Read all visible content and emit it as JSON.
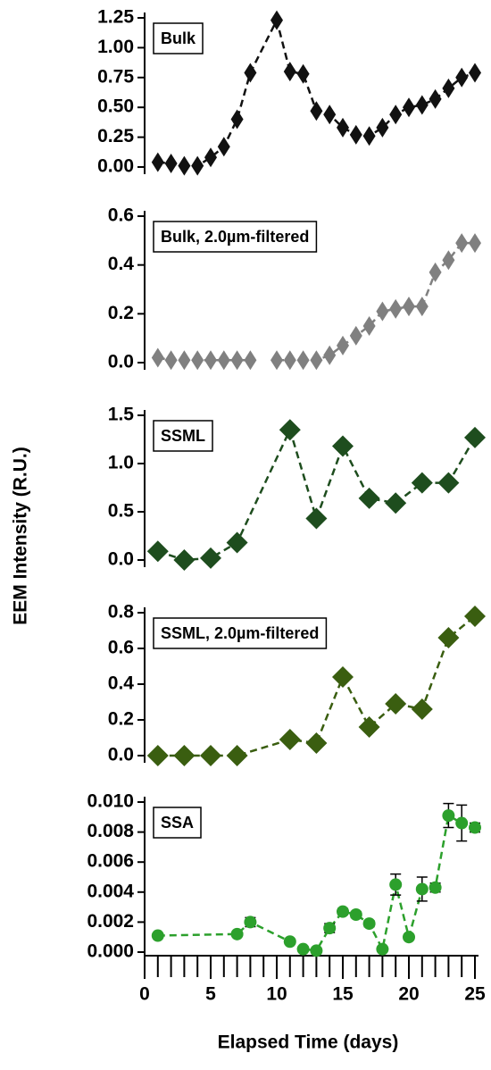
{
  "ylabel": "EEM Intensity (R.U.)",
  "xlabel": "Elapsed Time (days)",
  "chart_data": [
    {
      "type": "line",
      "marker": "diamond",
      "annotation": "Bulk",
      "color": "#111111",
      "x": [
        1,
        2,
        3,
        4,
        5,
        6,
        7,
        8,
        10,
        11,
        12,
        13,
        14,
        15,
        16,
        17,
        18,
        19,
        20,
        21,
        22,
        23,
        24,
        25
      ],
      "values": [
        0.04,
        0.03,
        0.01,
        0.01,
        0.08,
        0.17,
        0.4,
        0.79,
        1.23,
        0.8,
        0.78,
        0.47,
        0.44,
        0.33,
        0.27,
        0.26,
        0.33,
        0.44,
        0.5,
        0.52,
        0.57,
        0.66,
        0.75,
        0.79
      ],
      "xlim": [
        0,
        25
      ],
      "ylim": [
        0,
        1.25
      ],
      "yticks": [
        {
          "value": 0,
          "label": "0.00"
        },
        {
          "value": 0.25,
          "label": "0.25"
        },
        {
          "value": 0.5,
          "label": "0.50"
        },
        {
          "value": 0.75,
          "label": "0.75"
        },
        {
          "value": 1,
          "label": "1.00"
        },
        {
          "value": 1.25,
          "label": "1.25"
        }
      ]
    },
    {
      "type": "line",
      "marker": "diamond",
      "annotation": "Bulk, 2.0µm-filtered",
      "color": "#808080",
      "x": [
        1,
        2,
        3,
        4,
        5,
        6,
        7,
        8,
        9,
        10,
        11,
        12,
        13,
        14,
        15,
        16,
        17,
        18,
        19,
        20,
        21,
        22,
        23,
        24,
        25
      ],
      "values": [
        0.02,
        0.01,
        0.01,
        0.01,
        0.01,
        0.01,
        0.01,
        0.01,
        null,
        0.01,
        0.01,
        0.01,
        0.01,
        0.03,
        0.07,
        0.11,
        0.15,
        0.21,
        0.22,
        0.23,
        0.23,
        0.37,
        0.42,
        0.49,
        0.49
      ],
      "xlim": [
        0,
        25
      ],
      "ylim": [
        0,
        0.6
      ],
      "yticks": [
        {
          "value": 0,
          "label": "0.0"
        },
        {
          "value": 0.2,
          "label": "0.2"
        },
        {
          "value": 0.4,
          "label": "0.4"
        },
        {
          "value": 0.6,
          "label": "0.6"
        }
      ]
    },
    {
      "type": "line",
      "marker": "diamond-large",
      "annotation": "SSML",
      "color": "#1e4d1e",
      "x": [
        1,
        3,
        5,
        7,
        11,
        13,
        15,
        17,
        19,
        21,
        23,
        25
      ],
      "values": [
        0.09,
        0.0,
        0.02,
        0.18,
        1.35,
        0.43,
        1.18,
        0.64,
        0.59,
        0.8,
        0.8,
        1.27
      ],
      "xlim": [
        0,
        25
      ],
      "ylim": [
        0,
        1.5
      ],
      "yticks": [
        {
          "value": 0,
          "label": "0.0"
        },
        {
          "value": 0.5,
          "label": "0.5"
        },
        {
          "value": 1,
          "label": "1.0"
        },
        {
          "value": 1.5,
          "label": "1.5"
        }
      ]
    },
    {
      "type": "line",
      "marker": "diamond-large",
      "annotation": "SSML, 2.0µm-filtered",
      "color": "#3a5e10",
      "x": [
        1,
        3,
        5,
        7,
        11,
        13,
        15,
        17,
        19,
        21,
        23,
        25
      ],
      "values": [
        0.0,
        0.0,
        0.0,
        0.0,
        0.09,
        0.07,
        0.44,
        0.16,
        0.29,
        0.26,
        0.66,
        0.78
      ],
      "xlim": [
        0,
        25
      ],
      "ylim": [
        0,
        0.8
      ],
      "yticks": [
        {
          "value": 0,
          "label": "0.0"
        },
        {
          "value": 0.2,
          "label": "0.2"
        },
        {
          "value": 0.4,
          "label": "0.4"
        },
        {
          "value": 0.6,
          "label": "0.6"
        },
        {
          "value": 0.8,
          "label": "0.8"
        }
      ]
    },
    {
      "type": "line",
      "marker": "circle",
      "annotation": "SSA",
      "color": "#2ca02c",
      "x": [
        1,
        7,
        8,
        11,
        12,
        13,
        14,
        15,
        16,
        17,
        18,
        19,
        20,
        21,
        22,
        23,
        24,
        25
      ],
      "values": [
        0.0011,
        0.0012,
        0.002,
        0.0007,
        0.0002,
        0.0001,
        0.0016,
        0.0027,
        0.0025,
        0.0019,
        0.0002,
        0.0045,
        0.001,
        0.0042,
        0.0043,
        0.0091,
        0.0086,
        0.0083
      ],
      "errors": [
        0.0001,
        0.0001,
        0.0003,
        0.0001,
        0.0001,
        0.0001,
        0.0003,
        0.0002,
        0.0002,
        0.0002,
        0.0001,
        0.0007,
        0.0001,
        0.0008,
        0.0003,
        0.0008,
        0.0012,
        0.0003
      ],
      "xlim": [
        0,
        25
      ],
      "ylim": [
        0,
        0.01
      ],
      "yticks": [
        {
          "value": 0,
          "label": "0.000"
        },
        {
          "value": 0.002,
          "label": "0.002"
        },
        {
          "value": 0.004,
          "label": "0.004"
        },
        {
          "value": 0.006,
          "label": "0.006"
        },
        {
          "value": 0.008,
          "label": "0.008"
        },
        {
          "value": 0.01,
          "label": "0.010"
        }
      ],
      "xticks": [
        0,
        5,
        10,
        15,
        20,
        25
      ],
      "xminorticks": [
        0,
        1,
        2,
        3,
        4,
        5,
        6,
        7,
        8,
        9,
        10,
        11,
        12,
        13,
        14,
        15,
        16,
        17,
        18,
        19,
        20,
        21,
        22,
        23,
        24,
        25
      ]
    }
  ]
}
